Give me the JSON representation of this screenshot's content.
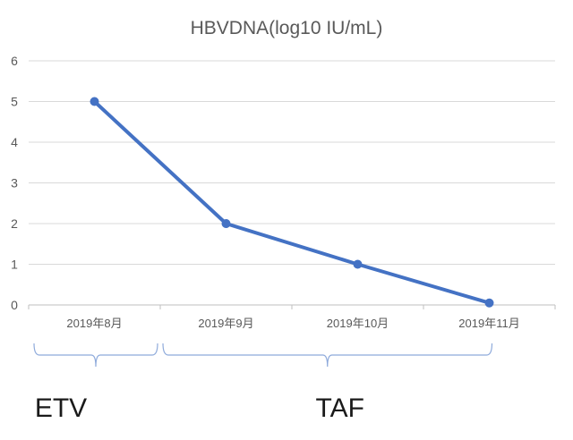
{
  "chart_data": {
    "type": "line",
    "title": "HBVDNA(log10 IU/mL)",
    "categories": [
      "2019年8月",
      "2019年9月",
      "2019年10月",
      "2019年11月"
    ],
    "series": [
      {
        "values": [
          5,
          2,
          1,
          0.05
        ]
      }
    ],
    "ylim": [
      0,
      6
    ],
    "yticks": [
      0,
      1,
      2,
      3,
      4,
      5,
      6
    ],
    "grid": true,
    "xlabel": "",
    "ylabel": "",
    "line_color": "#4472C4",
    "annotations": [
      {
        "label": "ETV",
        "from_category": 0,
        "to_category": 0
      },
      {
        "label": "TAF",
        "from_category": 0,
        "to_category": 3
      }
    ]
  }
}
